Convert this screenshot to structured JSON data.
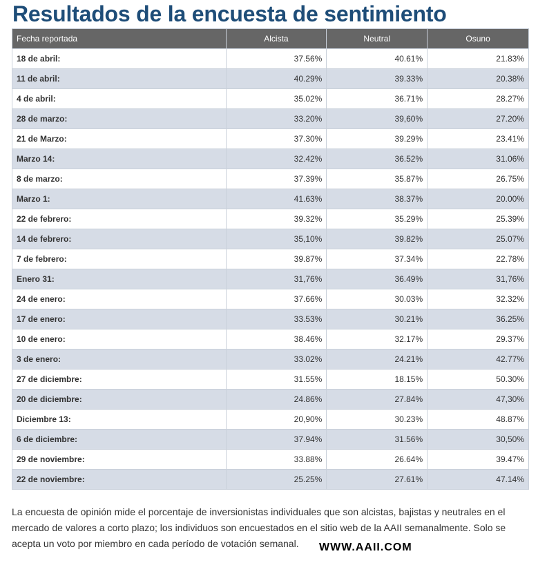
{
  "title": "Resultados de la encuesta de sentimiento",
  "table": {
    "headers": [
      "Fecha reportada",
      "Alcista",
      "Neutral",
      "Osuno"
    ],
    "rows": [
      [
        "18 de abril:",
        "37.56%",
        "40.61%",
        "21.83%"
      ],
      [
        "11 de abril:",
        "40.29%",
        "39.33%",
        "20.38%"
      ],
      [
        "4 de abril:",
        "35.02%",
        "36.71%",
        "28.27%"
      ],
      [
        "28 de marzo:",
        "33.20%",
        "39,60%",
        "27.20%"
      ],
      [
        "21 de Marzo:",
        "37.30%",
        "39.29%",
        "23.41%"
      ],
      [
        "Marzo 14:",
        "32.42%",
        "36.52%",
        "31.06%"
      ],
      [
        "8 de marzo:",
        "37.39%",
        "35.87%",
        "26.75%"
      ],
      [
        "Marzo 1:",
        "41.63%",
        "38.37%",
        "20.00%"
      ],
      [
        "22 de febrero:",
        "39.32%",
        "35.29%",
        "25.39%"
      ],
      [
        "14 de febrero:",
        "35,10%",
        "39.82%",
        "25.07%"
      ],
      [
        "7 de febrero:",
        "39.87%",
        "37.34%",
        "22.78%"
      ],
      [
        "Enero 31:",
        "31,76%",
        "36.49%",
        "31,76%"
      ],
      [
        "24 de enero:",
        "37.66%",
        "30.03%",
        "32.32%"
      ],
      [
        "17 de enero:",
        "33.53%",
        "30.21%",
        "36.25%"
      ],
      [
        "10 de enero:",
        "38.46%",
        "32.17%",
        "29.37%"
      ],
      [
        "3 de enero:",
        "33.02%",
        "24.21%",
        "42.77%"
      ],
      [
        "27 de diciembre:",
        "31.55%",
        "18.15%",
        "50.30%"
      ],
      [
        "20 de diciembre:",
        "24.86%",
        "27.84%",
        "47,30%"
      ],
      [
        "Diciembre 13:",
        "20,90%",
        "30.23%",
        "48.87%"
      ],
      [
        "6 de diciembre:",
        "37.94%",
        "31.56%",
        "30,50%"
      ],
      [
        "29 de noviembre:",
        "33.88%",
        "26.64%",
        "39.47%"
      ],
      [
        "22 de noviembre:",
        "25.25%",
        "27.61%",
        "47.14%"
      ]
    ]
  },
  "description": "La encuesta de opinión mide el porcentaje de inversionistas individuales que son alcistas, bajistas y neutrales en el mercado de valores a corto plazo; los individuos son encuestados en el sitio web de la AAII semanalmente. Solo se acepta un voto por miembro en cada período de votación semanal.",
  "watermark": "WWW.AAII.COM"
}
